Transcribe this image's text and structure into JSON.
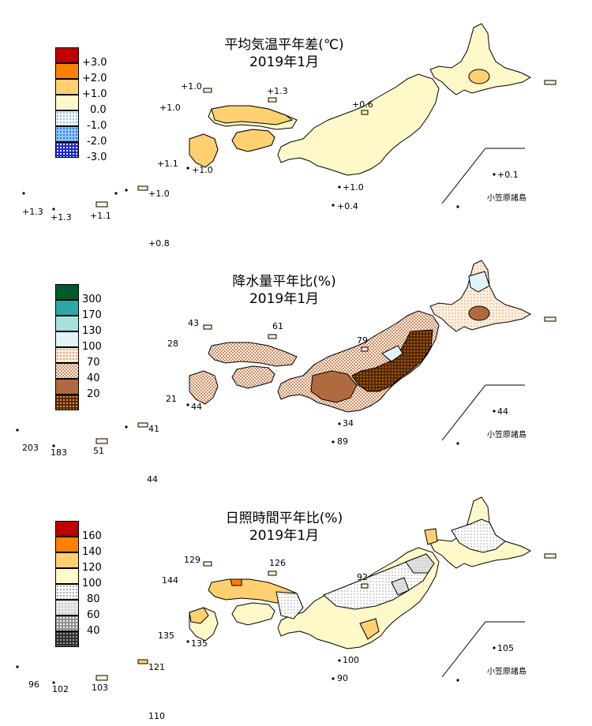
{
  "panels": [
    {
      "id": "temperature",
      "title_line1": "平均気温平年差(℃)",
      "title_line2": "2019年1月",
      "legend": [
        {
          "label": "+3.0",
          "color": "#c00000",
          "pattern": "solid"
        },
        {
          "label": "+2.0",
          "color": "#ff8000",
          "pattern": "solid"
        },
        {
          "label": "+1.0",
          "color": "#ffd070",
          "pattern": "solid"
        },
        {
          "label": "0.0",
          "color": "#fff8c8",
          "pattern": "solid"
        },
        {
          "label": "-1.0",
          "color": "#c8e8ff",
          "pattern": "dots"
        },
        {
          "label": "-2.0",
          "color": "#8cc8ff",
          "pattern": "dots"
        },
        {
          "label": "-3.0",
          "color": "#2030e0",
          "pattern": "dots"
        }
      ],
      "values": {
        "oki": "+1.0",
        "tsushima": "+1.3",
        "sado": "+0.6",
        "kyushu_nw": "+1.0",
        "yakushima": "+1.1",
        "tanegashima": "+1.0",
        "amami": "+1.0",
        "izu1": "+1.0",
        "hachijo": "+0.4",
        "chichijima": "+0.1",
        "yonaguni": "+1.3",
        "ishigaki": "+1.3",
        "okinawa": "+1.1",
        "daito": "+0.8"
      },
      "ogasawara_label": "小笠原諸島"
    },
    {
      "id": "precipitation",
      "title_line1": "降水量平年比(%)",
      "title_line2": "2019年1月",
      "legend": [
        {
          "label": "300",
          "color": "#005a2a",
          "pattern": "solid"
        },
        {
          "label": "170",
          "color": "#2aa8a8",
          "pattern": "solid"
        },
        {
          "label": "130",
          "color": "#a8e0e0",
          "pattern": "solid"
        },
        {
          "label": "100",
          "color": "#e0f4f8",
          "pattern": "solid"
        },
        {
          "label": "70",
          "color": "#fff0e0",
          "pattern": "dots"
        },
        {
          "label": "40",
          "color": "#e8c0a8",
          "pattern": "check"
        },
        {
          "label": "20",
          "color": "#b06a40",
          "pattern": "solid"
        },
        {
          "label": "",
          "color": "#5a2800",
          "pattern": "dots"
        }
      ],
      "values": {
        "oki": "43",
        "tsushima": "28",
        "sado": "79",
        "kyushu_nw": "61",
        "yakushima": "21",
        "tanegashima": "44",
        "amami": "41",
        "izu1": "34",
        "hachijo": "89",
        "chichijima": "44",
        "yonaguni": "203",
        "ishigaki": "183",
        "okinawa": "51",
        "daito": "44"
      },
      "ogasawara_label": "小笠原諸島"
    },
    {
      "id": "sunshine",
      "title_line1": "日照時間平年比(%)",
      "title_line2": "2019年1月",
      "legend": [
        {
          "label": "160",
          "color": "#c00000",
          "pattern": "solid"
        },
        {
          "label": "140",
          "color": "#ff8000",
          "pattern": "solid"
        },
        {
          "label": "120",
          "color": "#ffd070",
          "pattern": "solid"
        },
        {
          "label": "100",
          "color": "#fff8c8",
          "pattern": "solid"
        },
        {
          "label": "80",
          "color": "#ffffff",
          "pattern": "dots"
        },
        {
          "label": "60",
          "color": "#d8d8d8",
          "pattern": "dots"
        },
        {
          "label": "40",
          "color": "#909090",
          "pattern": "dots"
        },
        {
          "label": "",
          "color": "#303030",
          "pattern": "dots"
        }
      ],
      "values": {
        "oki": "129",
        "tsushima": "144",
        "sado": "92",
        "kyushu_nw": "126",
        "yakushima": "135",
        "tanegashima": "135",
        "amami": "121",
        "izu1": "100",
        "hachijo": "90",
        "chichijima": "105",
        "yonaguni": "96",
        "ishigaki": "102",
        "okinawa": "103",
        "daito": "110"
      },
      "ogasawara_label": "小笠原諸島"
    }
  ]
}
